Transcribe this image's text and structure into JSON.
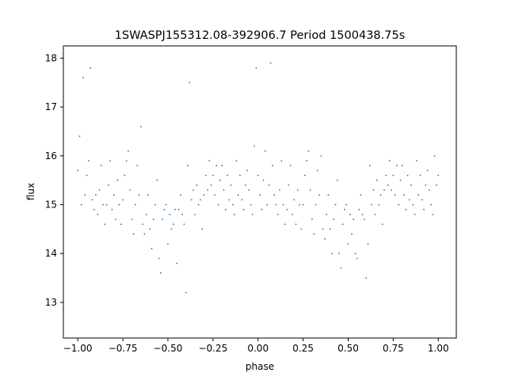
{
  "chart_data": {
    "type": "scatter",
    "title": "1SWASPJ155312.08-392906.7 Period 1500438.75s",
    "xlabel": "phase",
    "ylabel": "flux",
    "xlim": [
      -1.08,
      1.1
    ],
    "ylim": [
      12.27,
      18.25
    ],
    "xticks": [
      -1.0,
      -0.75,
      -0.5,
      -0.25,
      0.0,
      0.25,
      0.5,
      0.75,
      1.0
    ],
    "xtick_labels": [
      "−1.00",
      "−0.75",
      "−0.50",
      "−0.25",
      "0.00",
      "0.25",
      "0.50",
      "0.75",
      "1.00"
    ],
    "yticks": [
      13,
      14,
      15,
      16,
      17,
      18
    ],
    "ytick_labels": [
      "13",
      "14",
      "15",
      "16",
      "17",
      "18"
    ],
    "grid": false,
    "legend": "none",
    "point_color": "#1f77b4",
    "series": [
      {
        "points": [
          [
            -1.0,
            15.7
          ],
          [
            -0.99,
            16.4
          ],
          [
            -0.98,
            15.0
          ],
          [
            -0.97,
            17.6
          ],
          [
            -0.96,
            15.2
          ],
          [
            -0.95,
            15.6
          ],
          [
            -0.94,
            15.9
          ],
          [
            -0.93,
            17.8
          ],
          [
            -0.92,
            15.1
          ],
          [
            -0.91,
            14.9
          ],
          [
            -0.9,
            15.2
          ],
          [
            -0.89,
            14.8
          ],
          [
            -0.88,
            15.3
          ],
          [
            -0.87,
            15.8
          ],
          [
            -0.86,
            15.0
          ],
          [
            -0.85,
            14.6
          ],
          [
            -0.84,
            15.0
          ],
          [
            -0.83,
            15.4
          ],
          [
            -0.82,
            15.9
          ],
          [
            -0.81,
            14.9
          ],
          [
            -0.8,
            15.2
          ],
          [
            -0.79,
            14.7
          ],
          [
            -0.78,
            15.5
          ],
          [
            -0.77,
            15.0
          ],
          [
            -0.76,
            14.6
          ],
          [
            -0.75,
            15.1
          ],
          [
            -0.74,
            15.6
          ],
          [
            -0.73,
            15.9
          ],
          [
            -0.72,
            16.1
          ],
          [
            -0.71,
            15.3
          ],
          [
            -0.7,
            14.7
          ],
          [
            -0.69,
            14.4
          ],
          [
            -0.68,
            15.0
          ],
          [
            -0.67,
            15.8
          ],
          [
            -0.66,
            15.2
          ],
          [
            -0.65,
            16.6
          ],
          [
            -0.64,
            14.6
          ],
          [
            -0.63,
            14.4
          ],
          [
            -0.62,
            14.8
          ],
          [
            -0.61,
            15.2
          ],
          [
            -0.6,
            14.5
          ],
          [
            -0.59,
            14.1
          ],
          [
            -0.58,
            14.7
          ],
          [
            -0.57,
            15.0
          ],
          [
            -0.56,
            15.5
          ],
          [
            -0.55,
            13.9
          ],
          [
            -0.54,
            13.6
          ],
          [
            -0.53,
            14.7
          ],
          [
            -0.52,
            14.9
          ],
          [
            -0.51,
            15.0
          ],
          [
            -0.5,
            14.2
          ],
          [
            -0.49,
            14.8
          ],
          [
            -0.48,
            14.5
          ],
          [
            -0.47,
            14.6
          ],
          [
            -0.46,
            14.9
          ],
          [
            -0.45,
            13.8
          ],
          [
            -0.44,
            14.9
          ],
          [
            -0.43,
            15.2
          ],
          [
            -0.42,
            14.8
          ],
          [
            -0.41,
            14.6
          ],
          [
            -0.4,
            13.2
          ],
          [
            -0.39,
            15.8
          ],
          [
            -0.38,
            17.5
          ],
          [
            -0.37,
            15.1
          ],
          [
            -0.36,
            15.3
          ],
          [
            -0.35,
            14.8
          ],
          [
            -0.34,
            15.4
          ],
          [
            -0.33,
            15.0
          ],
          [
            -0.32,
            15.1
          ],
          [
            -0.31,
            14.5
          ],
          [
            -0.3,
            15.2
          ],
          [
            -0.29,
            15.6
          ],
          [
            -0.28,
            15.3
          ],
          [
            -0.27,
            15.9
          ],
          [
            -0.26,
            15.4
          ],
          [
            -0.25,
            15.6
          ],
          [
            -0.24,
            15.2
          ],
          [
            -0.23,
            15.8
          ],
          [
            -0.22,
            15.0
          ],
          [
            -0.21,
            15.5
          ],
          [
            -0.2,
            15.8
          ],
          [
            -0.19,
            15.3
          ],
          [
            -0.18,
            14.9
          ],
          [
            -0.17,
            15.6
          ],
          [
            -0.16,
            15.1
          ],
          [
            -0.15,
            15.4
          ],
          [
            -0.14,
            15.0
          ],
          [
            -0.13,
            14.8
          ],
          [
            -0.12,
            15.9
          ],
          [
            -0.11,
            15.2
          ],
          [
            -0.1,
            15.6
          ],
          [
            -0.09,
            15.1
          ],
          [
            -0.08,
            14.9
          ],
          [
            -0.07,
            15.4
          ],
          [
            -0.06,
            15.7
          ],
          [
            -0.05,
            15.3
          ],
          [
            -0.04,
            15.0
          ],
          [
            -0.03,
            14.8
          ],
          [
            -0.02,
            16.2
          ],
          [
            -0.01,
            17.8
          ],
          [
            0.0,
            15.6
          ],
          [
            0.01,
            15.2
          ],
          [
            0.02,
            14.9
          ],
          [
            0.03,
            15.5
          ],
          [
            0.04,
            16.1
          ],
          [
            0.05,
            15.0
          ],
          [
            0.06,
            15.4
          ],
          [
            0.07,
            17.9
          ],
          [
            0.08,
            15.8
          ],
          [
            0.09,
            15.2
          ],
          [
            0.1,
            15.0
          ],
          [
            0.11,
            14.8
          ],
          [
            0.12,
            15.3
          ],
          [
            0.13,
            15.9
          ],
          [
            0.14,
            15.0
          ],
          [
            0.15,
            14.6
          ],
          [
            0.16,
            14.9
          ],
          [
            0.17,
            15.4
          ],
          [
            0.18,
            15.8
          ],
          [
            0.19,
            14.8
          ],
          [
            0.2,
            15.1
          ],
          [
            0.21,
            14.6
          ],
          [
            0.22,
            15.3
          ],
          [
            0.23,
            15.0
          ],
          [
            0.24,
            14.5
          ],
          [
            0.25,
            15.0
          ],
          [
            0.26,
            15.6
          ],
          [
            0.27,
            15.9
          ],
          [
            0.28,
            16.1
          ],
          [
            0.29,
            15.3
          ],
          [
            0.3,
            14.7
          ],
          [
            0.31,
            14.4
          ],
          [
            0.32,
            15.0
          ],
          [
            0.33,
            15.7
          ],
          [
            0.34,
            15.2
          ],
          [
            0.35,
            16.0
          ],
          [
            0.36,
            14.5
          ],
          [
            0.37,
            14.3
          ],
          [
            0.38,
            14.8
          ],
          [
            0.39,
            15.2
          ],
          [
            0.4,
            14.5
          ],
          [
            0.41,
            14.0
          ],
          [
            0.42,
            14.7
          ],
          [
            0.43,
            15.0
          ],
          [
            0.44,
            15.5
          ],
          [
            0.45,
            14.0
          ],
          [
            0.46,
            13.7
          ],
          [
            0.47,
            14.6
          ],
          [
            0.48,
            14.9
          ],
          [
            0.49,
            15.0
          ],
          [
            0.5,
            14.2
          ],
          [
            0.51,
            14.8
          ],
          [
            0.52,
            14.4
          ],
          [
            0.53,
            14.7
          ],
          [
            0.54,
            14.0
          ],
          [
            0.55,
            13.9
          ],
          [
            0.56,
            14.9
          ],
          [
            0.57,
            15.2
          ],
          [
            0.58,
            14.8
          ],
          [
            0.59,
            14.7
          ],
          [
            0.6,
            13.5
          ],
          [
            0.61,
            14.2
          ],
          [
            0.62,
            15.8
          ],
          [
            0.63,
            15.0
          ],
          [
            0.64,
            15.3
          ],
          [
            0.65,
            14.8
          ],
          [
            0.66,
            15.5
          ],
          [
            0.67,
            15.0
          ],
          [
            0.68,
            15.2
          ],
          [
            0.69,
            14.6
          ],
          [
            0.7,
            15.3
          ],
          [
            0.71,
            15.6
          ],
          [
            0.72,
            15.4
          ],
          [
            0.73,
            15.9
          ],
          [
            0.74,
            15.3
          ],
          [
            0.75,
            15.6
          ],
          [
            0.76,
            15.2
          ],
          [
            0.77,
            15.8
          ],
          [
            0.78,
            15.0
          ],
          [
            0.79,
            15.5
          ],
          [
            0.8,
            15.8
          ],
          [
            0.81,
            15.2
          ],
          [
            0.82,
            14.9
          ],
          [
            0.83,
            15.6
          ],
          [
            0.84,
            15.1
          ],
          [
            0.85,
            15.4
          ],
          [
            0.86,
            15.0
          ],
          [
            0.87,
            14.8
          ],
          [
            0.88,
            15.9
          ],
          [
            0.89,
            15.2
          ],
          [
            0.9,
            15.6
          ],
          [
            0.91,
            15.1
          ],
          [
            0.92,
            14.9
          ],
          [
            0.93,
            15.4
          ],
          [
            0.94,
            15.7
          ],
          [
            0.95,
            15.3
          ],
          [
            0.96,
            15.0
          ],
          [
            0.97,
            14.8
          ],
          [
            0.98,
            16.0
          ],
          [
            0.99,
            15.4
          ],
          [
            1.0,
            15.6
          ]
        ]
      }
    ]
  }
}
